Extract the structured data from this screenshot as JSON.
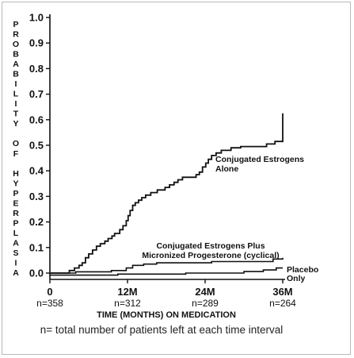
{
  "chart_data": {
    "type": "line",
    "step": true,
    "title": "",
    "xlabel": "TIME (MONTHS) ON MEDICATION",
    "ylabel": "PROBABILITY OF HYPERPLASIA",
    "xlim": [
      0,
      36
    ],
    "ylim": [
      0,
      1.0
    ],
    "y_ticks": [
      "0.0",
      "0.1",
      "0.2",
      "0.3",
      "0.4",
      "0.5",
      "0.6",
      "0.7",
      "0.8",
      "0.9",
      "1.0"
    ],
    "y_tick_values": [
      0,
      0.1,
      0.2,
      0.3,
      0.4,
      0.5,
      0.6,
      0.7,
      0.8,
      0.9,
      1.0
    ],
    "x_ticks": [
      {
        "value": 0,
        "label": "0",
        "n": "n=358"
      },
      {
        "value": 12,
        "label": "12M",
        "n": "n=312"
      },
      {
        "value": 24,
        "label": "24M",
        "n": "n=289"
      },
      {
        "value": 36,
        "label": "36M",
        "n": "n=264"
      }
    ],
    "series": [
      {
        "name": "Conjugated Estrogens Alone",
        "label_lines": [
          "Conjugated Estrogens",
          "Alone"
        ],
        "points": [
          [
            0,
            0
          ],
          [
            3,
            0
          ],
          [
            3,
            0.01
          ],
          [
            3.8,
            0.01
          ],
          [
            3.8,
            0.02
          ],
          [
            4.5,
            0.02
          ],
          [
            4.5,
            0.03
          ],
          [
            5,
            0.03
          ],
          [
            5,
            0.04
          ],
          [
            5.5,
            0.04
          ],
          [
            5.5,
            0.06
          ],
          [
            6,
            0.06
          ],
          [
            6,
            0.075
          ],
          [
            6.6,
            0.075
          ],
          [
            6.6,
            0.09
          ],
          [
            7.2,
            0.09
          ],
          [
            7.2,
            0.105
          ],
          [
            7.8,
            0.105
          ],
          [
            7.8,
            0.115
          ],
          [
            8.5,
            0.115
          ],
          [
            8.5,
            0.125
          ],
          [
            9,
            0.125
          ],
          [
            9,
            0.135
          ],
          [
            9.6,
            0.135
          ],
          [
            9.6,
            0.145
          ],
          [
            10,
            0.145
          ],
          [
            10,
            0.155
          ],
          [
            10.8,
            0.155
          ],
          [
            10.8,
            0.17
          ],
          [
            11.3,
            0.17
          ],
          [
            11.3,
            0.185
          ],
          [
            11.8,
            0.185
          ],
          [
            11.8,
            0.205
          ],
          [
            12.1,
            0.205
          ],
          [
            12.1,
            0.225
          ],
          [
            12.4,
            0.225
          ],
          [
            12.4,
            0.245
          ],
          [
            12.8,
            0.245
          ],
          [
            12.8,
            0.265
          ],
          [
            13.2,
            0.265
          ],
          [
            13.2,
            0.275
          ],
          [
            13.7,
            0.275
          ],
          [
            13.7,
            0.285
          ],
          [
            14.2,
            0.285
          ],
          [
            14.2,
            0.295
          ],
          [
            14.8,
            0.295
          ],
          [
            14.8,
            0.305
          ],
          [
            15.6,
            0.305
          ],
          [
            15.6,
            0.315
          ],
          [
            16.6,
            0.315
          ],
          [
            16.6,
            0.325
          ],
          [
            17.8,
            0.325
          ],
          [
            17.8,
            0.335
          ],
          [
            18.5,
            0.335
          ],
          [
            18.5,
            0.345
          ],
          [
            19.2,
            0.345
          ],
          [
            19.2,
            0.355
          ],
          [
            19.8,
            0.355
          ],
          [
            19.8,
            0.365
          ],
          [
            20.5,
            0.365
          ],
          [
            20.5,
            0.375
          ],
          [
            22.6,
            0.375
          ],
          [
            22.6,
            0.385
          ],
          [
            23.1,
            0.385
          ],
          [
            23.1,
            0.395
          ],
          [
            23.6,
            0.395
          ],
          [
            23.6,
            0.415
          ],
          [
            24.1,
            0.415
          ],
          [
            24.1,
            0.43
          ],
          [
            24.5,
            0.43
          ],
          [
            24.5,
            0.445
          ],
          [
            25,
            0.445
          ],
          [
            25,
            0.46
          ],
          [
            25.7,
            0.46
          ],
          [
            25.7,
            0.47
          ],
          [
            26.5,
            0.47
          ],
          [
            26.5,
            0.48
          ],
          [
            28,
            0.48
          ],
          [
            28,
            0.49
          ],
          [
            29.5,
            0.49
          ],
          [
            29.5,
            0.495
          ],
          [
            33.5,
            0.495
          ],
          [
            33.5,
            0.505
          ],
          [
            34.8,
            0.505
          ],
          [
            34.8,
            0.515
          ],
          [
            36,
            0.515
          ],
          [
            36,
            0.625
          ]
        ]
      },
      {
        "name": "Conjugated Estrogens Plus Micronized Progesterone (cyclical)",
        "label_lines": [
          "Conjugated Estrogens Plus",
          "Micronized Progesterone (cyclical)"
        ],
        "points": [
          [
            0,
            0
          ],
          [
            4,
            0
          ],
          [
            4,
            0.005
          ],
          [
            9.5,
            0.005
          ],
          [
            9.5,
            0.01
          ],
          [
            11.8,
            0.01
          ],
          [
            11.8,
            0.02
          ],
          [
            12.8,
            0.02
          ],
          [
            12.8,
            0.03
          ],
          [
            14.5,
            0.03
          ],
          [
            14.5,
            0.035
          ],
          [
            16.5,
            0.035
          ],
          [
            16.5,
            0.04
          ],
          [
            25,
            0.04
          ],
          [
            25,
            0.045
          ],
          [
            34.5,
            0.045
          ],
          [
            34.5,
            0.055
          ],
          [
            36,
            0.055
          ],
          [
            36,
            0.06
          ]
        ]
      },
      {
        "name": "Placebo Only",
        "label_lines": [
          "Placebo",
          "Only"
        ],
        "points": [
          [
            0,
            -0.008
          ],
          [
            10.5,
            -0.008
          ],
          [
            10.5,
            -0.004
          ],
          [
            21,
            -0.004
          ],
          [
            21,
            0.0
          ],
          [
            30,
            0.0
          ],
          [
            30,
            0.006
          ],
          [
            33,
            0.006
          ],
          [
            33,
            0.012
          ],
          [
            35,
            0.012
          ],
          [
            35,
            0.02
          ],
          [
            36,
            0.02
          ]
        ]
      }
    ],
    "footnote": "n= total number of patients left at each time interval"
  }
}
